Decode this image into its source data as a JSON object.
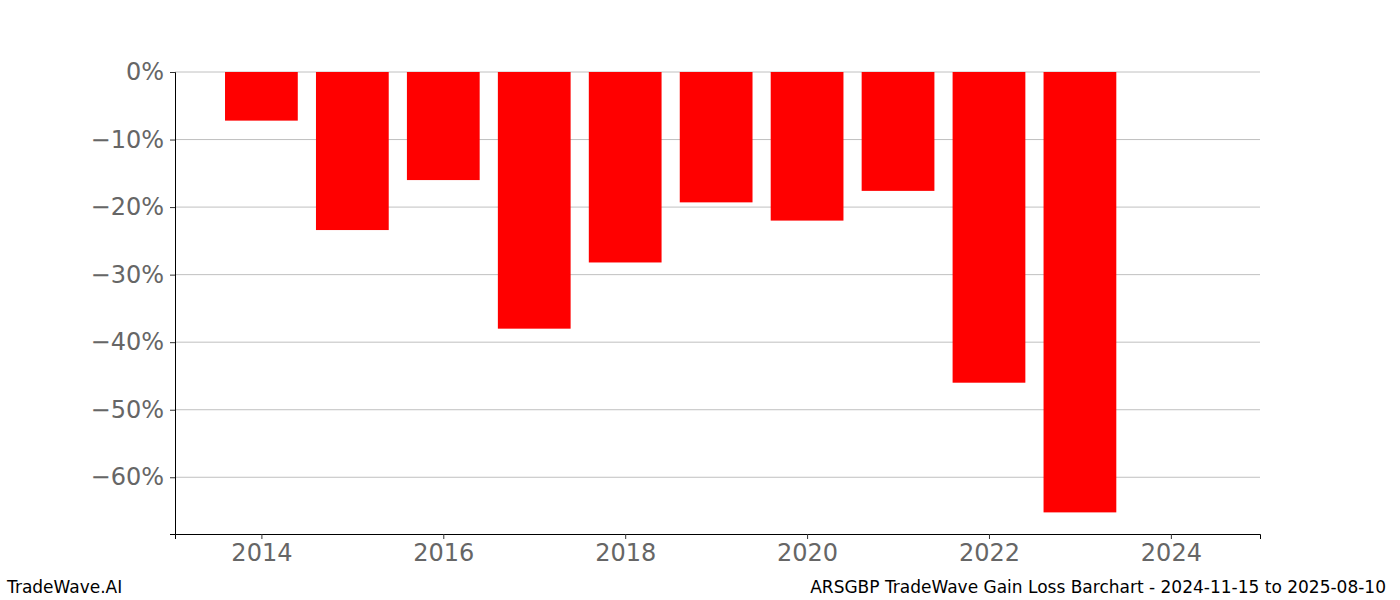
{
  "chart_data": {
    "type": "bar",
    "title": "ARSGBP TradeWave Gain Loss Barchart - 2024-11-15 to 2025-08-10",
    "annotations": [
      "TradeWave.AI"
    ],
    "x": [
      2014,
      2015,
      2016,
      2017,
      2018,
      2019,
      2020,
      2021,
      2022,
      2023
    ],
    "values": [
      -7.2,
      -23.4,
      -16,
      -38,
      -28.2,
      -19.3,
      -22,
      -17.6,
      -46,
      -65.2
    ],
    "color": "#ff0000",
    "xlim": [
      2013.05,
      2024.98
    ],
    "xticks": [
      2014,
      2016,
      2018,
      2020,
      2022,
      2024
    ],
    "ylim": [
      -68.4,
      0
    ],
    "yticks": [
      {
        "value": 0,
        "label": "0%"
      },
      {
        "value": -10,
        "label": "−10%"
      },
      {
        "value": -20,
        "label": "−20%"
      },
      {
        "value": -30,
        "label": "−30%"
      },
      {
        "value": -40,
        "label": "−40%"
      },
      {
        "value": -50,
        "label": "−50%"
      },
      {
        "value": -60,
        "label": "−60%"
      }
    ],
    "grid": true
  }
}
